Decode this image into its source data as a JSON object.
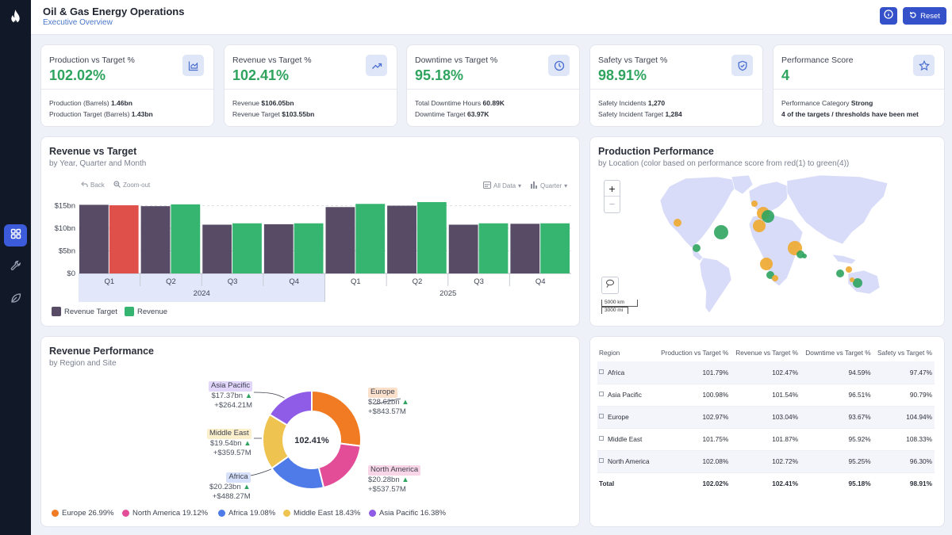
{
  "header": {
    "title": "Oil & Gas Energy Operations",
    "subtitle": "Executive Overview",
    "reset_label": "Reset"
  },
  "sidebar": {
    "items": [
      "dashboard-icon",
      "wrench-icon",
      "leaf-icon"
    ]
  },
  "kpis": [
    {
      "title": "Production vs Target %",
      "value": "102.02%",
      "icon": "chart-icon",
      "l1_label": "Production (Barrels)",
      "l1_value": "1.46bn",
      "l2_label": "Production Target (Barrels)",
      "l2_value": "1.43bn"
    },
    {
      "title": "Revenue vs Target %",
      "value": "102.41%",
      "icon": "trend-up-icon",
      "l1_label": "Revenue",
      "l1_value": "$106.05bn",
      "l2_label": "Revenue Target",
      "l2_value": "$103.55bn"
    },
    {
      "title": "Downtime vs Target %",
      "value": "95.18%",
      "icon": "clock-icon",
      "l1_label": "Total Downtime Hours",
      "l1_value": "60.89K",
      "l2_label": "Downtime Target",
      "l2_value": "63.97K"
    },
    {
      "title": "Safety vs Target %",
      "value": "98.91%",
      "icon": "shield-icon",
      "l1_label": "Safety Incidents",
      "l1_value": "1,270",
      "l2_label": "Safety Incident Target",
      "l2_value": "1,284"
    },
    {
      "title": "Performance Score",
      "value": "4",
      "icon": "star-icon",
      "l1_label": "Performance Category",
      "l1_value": "Strong",
      "l2_label": "",
      "l2_value": "4 of the targets / thresholds have been met"
    }
  ],
  "revenue_chart": {
    "title": "Revenue vs Target",
    "subtitle": "by Year, Quarter and Month",
    "back_label": "Back",
    "zoom_label": "Zoom-out",
    "data_label": "All Data",
    "level_label": "Quarter",
    "colors": {
      "target": "#574b66",
      "revenue": "#35b56f",
      "under": "#e0504b"
    }
  },
  "chart_data": {
    "type": "bar",
    "categories": [
      "Q1",
      "Q2",
      "Q3",
      "Q4",
      "Q1",
      "Q2",
      "Q3",
      "Q4"
    ],
    "groups": [
      "2024",
      "2025"
    ],
    "series": [
      {
        "name": "Revenue Target",
        "values": [
          15.2,
          14.9,
          10.8,
          10.9,
          14.7,
          15.0,
          10.8,
          11.0
        ]
      },
      {
        "name": "Revenue",
        "values": [
          15.1,
          15.3,
          11.1,
          11.1,
          15.4,
          15.8,
          11.1,
          11.1
        ]
      }
    ],
    "y_ticks": [
      "$0",
      "$5bn",
      "$10bn",
      "$15bn"
    ],
    "ylim": [
      0,
      16.5
    ],
    "legend": "bottom-left"
  },
  "map": {
    "title": "Production Performance",
    "subtitle": "by Location (color based on performance score from red(1) to green(4))",
    "zoom_in": "+",
    "zoom_out": "−",
    "scale_km": "5000 km",
    "scale_mi": "3000 mi"
  },
  "donut": {
    "title": "Revenue Performance",
    "subtitle": "by Region and Site",
    "center": "102.41%",
    "slices": [
      {
        "name": "Europe",
        "pct": 26.99,
        "color": "#f07b22",
        "value": "$28.62bn",
        "delta": "+$843.57M"
      },
      {
        "name": "North America",
        "pct": 19.12,
        "color": "#e34d98",
        "value": "$20.28bn",
        "delta": "+$537.57M"
      },
      {
        "name": "Africa",
        "pct": 19.08,
        "color": "#4f7be8",
        "value": "$20.23bn",
        "delta": "+$488.27M"
      },
      {
        "name": "Middle East",
        "pct": 18.43,
        "color": "#efc350",
        "value": "$19.54bn",
        "delta": "+$359.57M"
      },
      {
        "name": "Asia Pacific",
        "pct": 16.38,
        "color": "#8e5ce6",
        "value": "$17.37bn",
        "delta": "+$264.21M"
      }
    ],
    "legend": [
      "Europe 26.99%",
      "North America 19.12%",
      "Africa 19.08%",
      "Middle East 18.43%",
      "Asia Pacific 16.38%"
    ]
  },
  "table": {
    "headers": [
      "Region",
      "Production vs Target %",
      "Revenue vs Target %",
      "Downtime vs Target %",
      "Safety vs Target %"
    ],
    "rows": [
      [
        "Africa",
        "101.79%",
        "102.47%",
        "94.59%",
        "97.47%"
      ],
      [
        "Asia Pacific",
        "100.98%",
        "101.54%",
        "96.51%",
        "90.79%"
      ],
      [
        "Europe",
        "102.97%",
        "103.04%",
        "93.67%",
        "104.94%"
      ],
      [
        "Middle East",
        "101.75%",
        "101.87%",
        "95.92%",
        "108.33%"
      ],
      [
        "North America",
        "102.08%",
        "102.72%",
        "95.25%",
        "96.30%"
      ]
    ],
    "total": [
      "Total",
      "102.02%",
      "102.41%",
      "95.18%",
      "98.91%"
    ]
  }
}
